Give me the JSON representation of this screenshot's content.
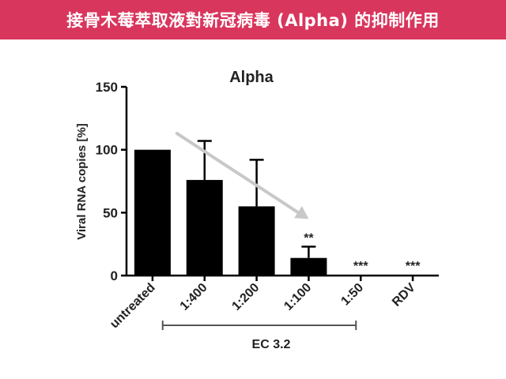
{
  "header": {
    "title": "接骨木莓萃取液對新冠病毒 (Alpha) 的抑制作用"
  },
  "colors": {
    "banner": "#d9365d",
    "bars": "#000000",
    "trend_arrow": "#c8c8c8"
  },
  "chart_data": {
    "type": "bar",
    "title": "Alpha",
    "xlabel": "",
    "ylabel": "Viral RNA copies [%]",
    "categories": [
      "untreated",
      "1:400",
      "1:200",
      "1:100",
      "1:50",
      "RDV"
    ],
    "values": [
      100,
      76,
      55,
      14,
      0.5,
      0.5
    ],
    "error_upper": [
      100,
      107,
      92,
      23,
      0.5,
      0.5
    ],
    "significance": [
      "",
      "",
      "",
      "**",
      "***",
      "***"
    ],
    "ylim": [
      0,
      150
    ],
    "yticks": [
      0,
      50,
      100,
      150
    ],
    "grid": false,
    "group_label": "EC 3.2",
    "group_categories": [
      "1:400",
      "1:50"
    ],
    "trend_arrow": {
      "from": "1:400",
      "to": "1:100"
    }
  }
}
